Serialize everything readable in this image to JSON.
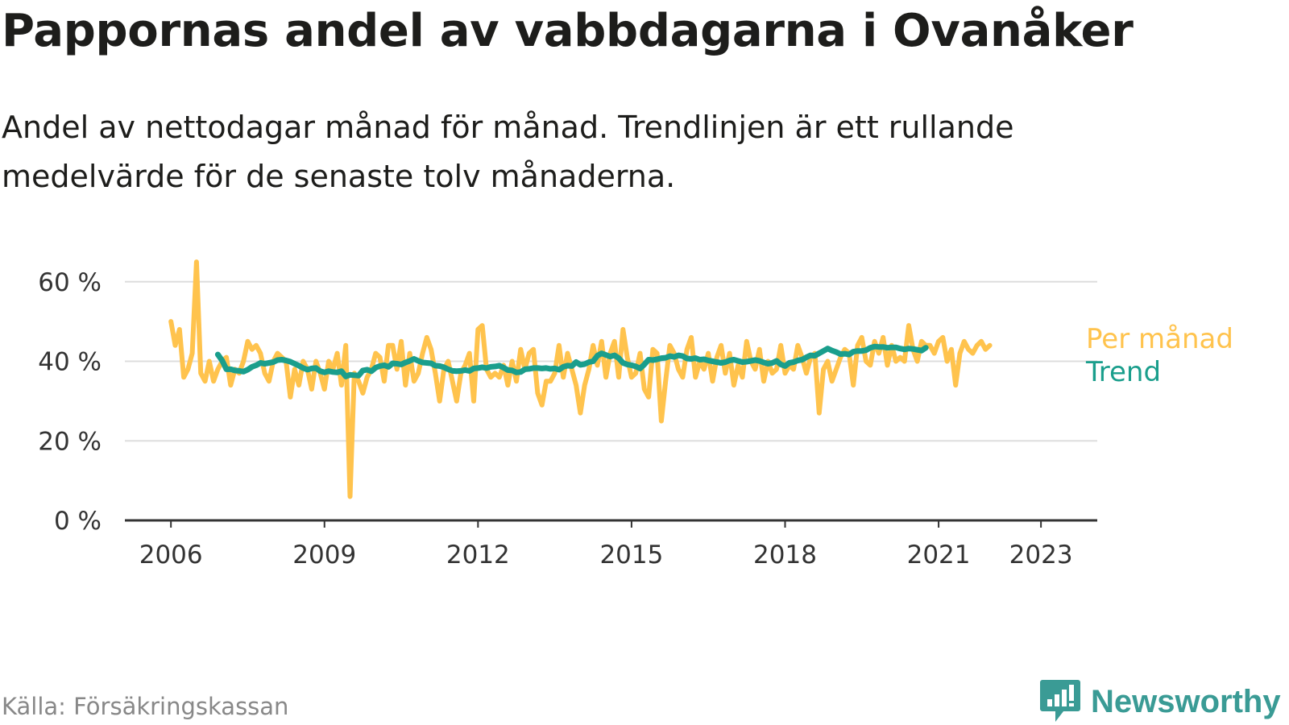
{
  "title": "Pappornas andel av vabbdagarna i Ovanåker",
  "subtitle": "Andel av nettodagar månad för månad. Trendlinjen är ett rullande medelvärde för de senaste tolv månaderna.",
  "source": "Källa: Försäkringskassan",
  "brand": {
    "name": "Newsworthy",
    "color": "#3a9b95"
  },
  "chart_data": {
    "type": "line",
    "x_unit": "year (decimal)",
    "xlim": [
      2005.1,
      2024.1
    ],
    "ylim": [
      0,
      64
    ],
    "y_ticks": [
      {
        "value": 0,
        "label": "0 %"
      },
      {
        "value": 20,
        "label": "20 %"
      },
      {
        "value": 40,
        "label": "40 %"
      },
      {
        "value": 60,
        "label": "60 %"
      }
    ],
    "x_ticks": [
      {
        "value": 2006,
        "label": "2006"
      },
      {
        "value": 2009,
        "label": "2009"
      },
      {
        "value": 2012,
        "label": "2012"
      },
      {
        "value": 2015,
        "label": "2015"
      },
      {
        "value": 2018,
        "label": "2018"
      },
      {
        "value": 2021,
        "label": "2021"
      },
      {
        "value": 2023,
        "label": "2023"
      }
    ],
    "grid": true,
    "legend": "right-end labels",
    "series": [
      {
        "name": "Per månad",
        "color": "#ffc34d",
        "x_start": 2006.0,
        "x_step": 0.08333,
        "values": [
          50,
          44,
          48,
          36,
          38,
          42,
          65,
          37,
          35,
          40,
          35,
          38,
          40,
          41,
          34,
          38,
          37,
          40,
          45,
          43,
          44,
          42,
          37,
          35,
          40,
          42,
          41,
          40,
          31,
          38,
          34,
          40,
          38,
          33,
          40,
          37,
          33,
          40,
          38,
          42,
          34,
          44,
          6,
          37,
          35,
          32,
          36,
          38,
          42,
          41,
          35,
          44,
          44,
          38,
          45,
          34,
          42,
          35,
          37,
          42,
          46,
          43,
          37,
          30,
          38,
          40,
          35,
          30,
          37,
          39,
          42,
          30,
          48,
          49,
          38,
          36,
          37,
          36,
          39,
          34,
          40,
          35,
          43,
          38,
          42,
          43,
          32,
          29,
          35,
          35,
          37,
          44,
          36,
          42,
          38,
          34,
          27,
          34,
          38,
          44,
          39,
          45,
          36,
          42,
          45,
          36,
          48,
          41,
          36,
          37,
          42,
          33,
          31,
          43,
          42,
          25,
          35,
          44,
          42,
          38,
          36,
          43,
          46,
          36,
          40,
          38,
          42,
          35,
          41,
          44,
          37,
          42,
          34,
          39,
          36,
          45,
          40,
          38,
          43,
          35,
          40,
          37,
          38,
          44,
          37,
          39,
          38,
          44,
          41,
          37,
          41,
          42,
          27,
          38,
          40,
          35,
          38,
          41,
          43,
          42,
          34,
          44,
          46,
          40,
          39,
          45,
          42,
          46,
          39,
          44,
          40,
          41,
          40,
          49,
          43,
          40,
          45,
          44,
          44,
          42,
          45,
          46,
          40,
          43,
          34,
          42,
          45,
          43,
          42,
          44,
          45,
          43,
          44
        ]
      },
      {
        "name": "Trend",
        "color": "#1a9e8c",
        "x_start": 2006.9167,
        "x_step": 0.08333,
        "values": [
          41.7,
          40.2,
          38.0,
          38.0,
          37.7,
          37.6,
          37.4,
          37.9,
          38.6,
          39.0,
          39.6,
          39.4,
          39.6,
          39.8,
          40.3,
          40.4,
          40.2,
          39.9,
          39.4,
          38.9,
          38.3,
          37.9,
          38.2,
          38.3,
          37.5,
          37.2,
          37.5,
          37.3,
          37.2,
          37.5,
          36.2,
          36.6,
          36.5,
          36.4,
          37.7,
          37.9,
          37.5,
          38.4,
          38.8,
          39.0,
          38.6,
          39.5,
          39.4,
          39.2,
          39.7,
          40.1,
          40.6,
          40.1,
          39.7,
          39.6,
          39.5,
          38.9,
          38.8,
          38.5,
          38.0,
          37.6,
          37.5,
          37.6,
          37.8,
          37.6,
          38.2,
          38.3,
          38.5,
          38.3,
          38.6,
          38.7,
          38.9,
          38.4,
          37.8,
          37.7,
          37.2,
          37.3,
          38.0,
          38.1,
          38.3,
          38.3,
          38.2,
          38.3,
          38.1,
          38.2,
          37.9,
          38.6,
          38.9,
          38.8,
          39.8,
          39.1,
          39.3,
          39.8,
          40.0,
          41.4,
          42.0,
          41.6,
          41.2,
          41.5,
          40.8,
          39.6,
          39.2,
          39.0,
          38.7,
          38.2,
          39.2,
          40.4,
          40.3,
          40.5,
          40.8,
          40.9,
          41.3,
          41.1,
          41.5,
          41.3,
          40.7,
          40.6,
          40.8,
          40.4,
          40.5,
          40.2,
          40.0,
          39.8,
          39.6,
          39.8,
          40.2,
          40.4,
          40.1,
          39.8,
          39.9,
          40.1,
          40.3,
          40.1,
          39.7,
          39.4,
          39.6,
          40.1,
          39.2,
          38.8,
          39.6,
          39.8,
          40.2,
          40.4,
          41.0,
          41.5,
          41.4,
          42.0,
          42.6,
          43.2,
          42.7,
          42.3,
          41.8,
          41.9,
          41.7,
          42.4,
          42.6,
          42.6,
          42.8,
          43.4,
          43.7,
          43.6,
          43.6,
          43.4,
          43.5,
          43.5,
          43.2,
          43.0,
          43.2,
          43.1,
          42.9,
          42.7,
          43.4
        ]
      }
    ]
  }
}
